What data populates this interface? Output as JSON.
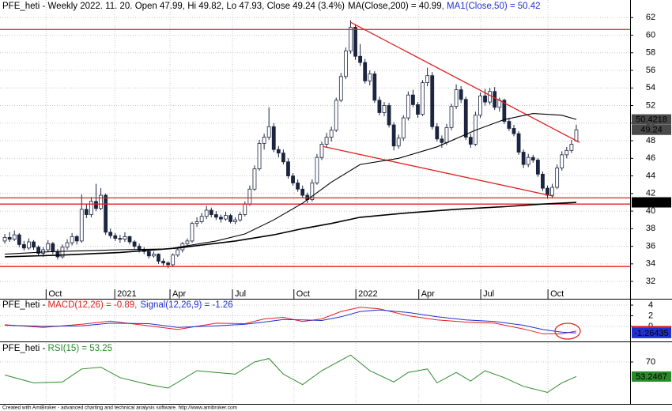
{
  "chart_data": [
    {
      "type": "candlestick",
      "title": "PFE_heti - Weekly 2022. 11. 20. Open 47.99, Hi 49.82, Lo 47.93, Close 49.24 (3.4%)",
      "xlim": [
        -1,
        130.2
      ],
      "xticks": [
        {
          "value": 8.6,
          "label": "Oct"
        },
        {
          "value": 22.9,
          "label": "2021"
        },
        {
          "value": 34.4,
          "label": "Apr"
        },
        {
          "value": 47.4,
          "label": "Jul"
        },
        {
          "value": 60.2,
          "label": "Oct"
        },
        {
          "value": 73.1,
          "label": "2022"
        },
        {
          "value": 86.2,
          "label": "Apr"
        },
        {
          "value": 99.1,
          "label": "Jul"
        },
        {
          "value": 113.1,
          "label": "Oct"
        }
      ],
      "ylim": [
        31.2,
        64
      ],
      "yticks": [
        32,
        34,
        36,
        38,
        40,
        42,
        44,
        46,
        48,
        50,
        52,
        54,
        56,
        58,
        60,
        62
      ],
      "grid": true,
      "up_color": "#ffffff",
      "down_color": "#1c2540",
      "outline_color": "#1c2540",
      "ohlc": [
        [
          36.6,
          37.4,
          36.3,
          37.0
        ],
        [
          37.0,
          37.6,
          36.5,
          36.8
        ],
        [
          36.8,
          37.8,
          36.6,
          37.3
        ],
        [
          37.3,
          37.5,
          35.9,
          36.2
        ],
        [
          36.2,
          36.6,
          35.5,
          35.8
        ],
        [
          35.8,
          36.9,
          35.6,
          36.5
        ],
        [
          36.5,
          36.7,
          35.6,
          35.9
        ],
        [
          35.9,
          36.1,
          34.9,
          35.2
        ],
        [
          35.2,
          35.9,
          34.8,
          35.6
        ],
        [
          35.6,
          36.7,
          35.4,
          36.3
        ],
        [
          36.3,
          36.5,
          35.1,
          35.4
        ],
        [
          35.4,
          35.7,
          34.5,
          34.8
        ],
        [
          34.8,
          36.2,
          34.6,
          35.9
        ],
        [
          35.9,
          36.8,
          35.6,
          36.4
        ],
        [
          36.4,
          37.5,
          36.1,
          37.1
        ],
        [
          37.1,
          37.3,
          36.2,
          36.6
        ],
        [
          36.6,
          41.9,
          36.4,
          40.2
        ],
        [
          40.2,
          40.8,
          39.2,
          39.6
        ],
        [
          39.6,
          41.6,
          39.3,
          41.1
        ],
        [
          41.1,
          43.1,
          40.0,
          40.3
        ],
        [
          40.3,
          42.6,
          40.1,
          41.8
        ],
        [
          41.8,
          42.0,
          37.3,
          37.6
        ],
        [
          37.6,
          38.0,
          36.9,
          37.2
        ],
        [
          37.2,
          37.5,
          36.6,
          36.9
        ],
        [
          36.9,
          37.3,
          36.4,
          36.8
        ],
        [
          36.8,
          37.6,
          36.5,
          37.1
        ],
        [
          37.1,
          37.2,
          36.2,
          36.5
        ],
        [
          36.5,
          36.7,
          35.7,
          36.0
        ],
        [
          36.0,
          36.3,
          35.3,
          35.6
        ],
        [
          35.6,
          35.9,
          35.1,
          35.4
        ],
        [
          35.4,
          35.5,
          34.6,
          34.9
        ],
        [
          34.9,
          35.4,
          34.7,
          35.1
        ],
        [
          35.1,
          35.2,
          34.0,
          34.3
        ],
        [
          34.3,
          34.6,
          33.8,
          34.1
        ],
        [
          34.1,
          34.3,
          33.5,
          33.9
        ],
        [
          33.9,
          35.2,
          33.7,
          35.0
        ],
        [
          35.0,
          35.9,
          34.8,
          35.6
        ],
        [
          35.6,
          36.5,
          35.3,
          36.3
        ],
        [
          36.3,
          36.9,
          36.0,
          36.6
        ],
        [
          36.6,
          38.8,
          36.4,
          38.6
        ],
        [
          38.6,
          39.3,
          38.2,
          38.8
        ],
        [
          38.8,
          39.8,
          38.6,
          39.4
        ],
        [
          39.4,
          40.6,
          39.1,
          40.1
        ],
        [
          40.1,
          40.4,
          39.3,
          39.6
        ],
        [
          39.6,
          40.0,
          39.0,
          39.3
        ],
        [
          39.3,
          39.6,
          38.7,
          39.1
        ],
        [
          39.1,
          39.9,
          38.9,
          39.5
        ],
        [
          39.5,
          39.7,
          38.6,
          38.8
        ],
        [
          38.8,
          39.3,
          38.5,
          39.0
        ],
        [
          39.0,
          39.9,
          38.8,
          39.6
        ],
        [
          39.6,
          41.1,
          39.4,
          40.8
        ],
        [
          40.8,
          42.9,
          40.6,
          42.5
        ],
        [
          42.5,
          45.2,
          42.3,
          44.8
        ],
        [
          44.8,
          48.1,
          44.6,
          47.7
        ],
        [
          47.7,
          48.8,
          47.0,
          48.4
        ],
        [
          48.4,
          51.8,
          48.1,
          49.6
        ],
        [
          49.6,
          50.0,
          46.7,
          47.0
        ],
        [
          47.0,
          47.4,
          46.1,
          46.6
        ],
        [
          46.6,
          47.0,
          45.3,
          45.6
        ],
        [
          45.6,
          46.0,
          43.7,
          44.0
        ],
        [
          44.0,
          44.3,
          42.9,
          43.2
        ],
        [
          43.2,
          43.6,
          42.2,
          42.5
        ],
        [
          42.5,
          42.9,
          41.5,
          41.8
        ],
        [
          41.8,
          42.1,
          40.9,
          41.3
        ],
        [
          41.3,
          43.6,
          41.1,
          43.2
        ],
        [
          43.2,
          46.5,
          43.0,
          46.1
        ],
        [
          46.1,
          47.9,
          45.8,
          47.6
        ],
        [
          47.6,
          48.9,
          47.2,
          48.4
        ],
        [
          48.4,
          49.6,
          47.9,
          49.2
        ],
        [
          49.2,
          52.9,
          49.0,
          52.6
        ],
        [
          52.6,
          55.7,
          52.4,
          55.3
        ],
        [
          55.3,
          58.6,
          55.0,
          58.2
        ],
        [
          58.2,
          61.7,
          57.9,
          60.9
        ],
        [
          60.9,
          61.2,
          57.2,
          57.6
        ],
        [
          57.6,
          59.0,
          56.5,
          56.9
        ],
        [
          56.9,
          57.3,
          54.5,
          54.8
        ],
        [
          54.8,
          56.0,
          54.3,
          55.6
        ],
        [
          55.6,
          55.9,
          52.3,
          52.6
        ],
        [
          52.6,
          53.0,
          50.9,
          51.2
        ],
        [
          51.2,
          52.4,
          50.8,
          52.0
        ],
        [
          52.0,
          52.3,
          49.5,
          49.8
        ],
        [
          49.8,
          50.1,
          46.9,
          47.4
        ],
        [
          47.4,
          48.7,
          47.1,
          48.3
        ],
        [
          48.3,
          50.9,
          48.0,
          50.6
        ],
        [
          50.6,
          53.6,
          50.3,
          53.2
        ],
        [
          53.2,
          53.8,
          51.8,
          52.1
        ],
        [
          52.1,
          52.4,
          50.6,
          51.0
        ],
        [
          51.0,
          54.9,
          50.8,
          54.6
        ],
        [
          54.6,
          56.3,
          54.2,
          55.4
        ],
        [
          55.4,
          55.8,
          49.3,
          49.6
        ],
        [
          49.6,
          50.0,
          47.9,
          48.2
        ],
        [
          48.2,
          48.6,
          47.2,
          47.8
        ],
        [
          47.8,
          49.9,
          47.5,
          49.5
        ],
        [
          49.5,
          52.2,
          49.2,
          51.9
        ],
        [
          51.9,
          54.4,
          51.6,
          53.8
        ],
        [
          53.8,
          54.2,
          52.3,
          52.7
        ],
        [
          52.7,
          53.0,
          48.1,
          48.4
        ],
        [
          48.4,
          48.8,
          47.2,
          47.6
        ],
        [
          47.6,
          51.3,
          47.4,
          50.9
        ],
        [
          50.9,
          53.5,
          50.6,
          53.1
        ],
        [
          53.1,
          53.9,
          52.0,
          52.4
        ],
        [
          52.4,
          54.0,
          52.1,
          53.6
        ],
        [
          53.6,
          54.1,
          51.5,
          51.8
        ],
        [
          51.8,
          52.9,
          51.3,
          52.6
        ],
        [
          52.6,
          52.8,
          49.9,
          50.2
        ],
        [
          50.2,
          50.6,
          49.1,
          49.4
        ],
        [
          49.4,
          49.8,
          48.5,
          48.8
        ],
        [
          48.8,
          49.1,
          46.4,
          46.7
        ],
        [
          46.7,
          47.0,
          44.9,
          45.3
        ],
        [
          45.3,
          46.5,
          45.0,
          46.1
        ],
        [
          46.1,
          46.4,
          45.5,
          45.8
        ],
        [
          45.8,
          46.0,
          43.9,
          44.2
        ],
        [
          44.2,
          44.5,
          42.3,
          42.6
        ],
        [
          42.6,
          42.9,
          41.4,
          41.8
        ],
        [
          41.8,
          43.1,
          41.5,
          42.7
        ],
        [
          42.7,
          45.3,
          42.5,
          44.9
        ],
        [
          44.9,
          46.8,
          44.6,
          46.4
        ],
        [
          46.4,
          47.3,
          46.0,
          46.9
        ],
        [
          46.9,
          48.1,
          46.6,
          47.6
        ],
        [
          47.99,
          49.82,
          47.93,
          49.24
        ]
      ],
      "series": [
        {
          "name": "MA(Close,200) = 40.99",
          "color": "#000000",
          "x": [
            0,
            12,
            24,
            36,
            48,
            56,
            62,
            68,
            74,
            84,
            94,
            104,
            112,
            119
          ],
          "values": [
            34.8,
            35.0,
            35.3,
            35.8,
            36.6,
            37.3,
            38.0,
            38.6,
            39.3,
            39.8,
            40.2,
            40.5,
            40.8,
            40.99
          ]
        },
        {
          "name": "MA1(Close,50) = 50.42",
          "color": "#000000",
          "x": [
            0,
            10,
            24,
            34,
            44,
            50,
            56,
            62,
            68,
            74,
            82,
            90,
            98,
            104,
            110,
            116,
            119
          ],
          "values": [
            35.1,
            35.4,
            35.6,
            35.7,
            36.6,
            37.4,
            39.0,
            40.9,
            43.3,
            45.3,
            46.0,
            47.3,
            49.2,
            50.4,
            51.1,
            50.9,
            50.42
          ]
        }
      ],
      "trend_color": "#e02020",
      "levels": [
        60.65,
        41.5,
        40.8,
        33.7
      ],
      "trendlines": [
        {
          "x": [
            71.9,
            119.7
          ],
          "values": [
            61.5,
            47.8
          ]
        },
        {
          "x": [
            66.2,
            114.2
          ],
          "values": [
            47.35,
            41.7
          ]
        }
      ],
      "last_values": [
        {
          "value": 50.4218,
          "color": "#4a4a4a"
        },
        {
          "value": 49.24,
          "color": "#4a4a4a"
        },
        {
          "value": 40.9942,
          "color": "#000000"
        }
      ]
    },
    {
      "type": "line",
      "title": "PFE_heti - ",
      "xlim": [
        -1,
        130.2
      ],
      "ylim": [
        -2.7,
        4.9
      ],
      "yticks": [
        0,
        2,
        4
      ],
      "grid": true,
      "series": [
        {
          "name": "MACD(12,26) = -0.89,",
          "color": "#e02020",
          "x": [
            0,
            8,
            16,
            22,
            30,
            36,
            44,
            50,
            54,
            58,
            62,
            66,
            70,
            74,
            78,
            84,
            90,
            96,
            102,
            108,
            112,
            116,
            119
          ],
          "values": [
            0.3,
            -0.2,
            0.4,
            1.0,
            0.1,
            -0.6,
            0.6,
            0.5,
            1.4,
            1.7,
            0.9,
            1.4,
            2.8,
            3.6,
            3.3,
            2.0,
            1.2,
            0.8,
            0.6,
            -0.5,
            -1.4,
            -1.4,
            -0.89
          ]
        },
        {
          "name": "Signal(12,26,9) = -1.26",
          "color": "#2030d0",
          "x": [
            0,
            8,
            16,
            22,
            30,
            36,
            44,
            50,
            54,
            58,
            62,
            66,
            70,
            74,
            78,
            84,
            90,
            96,
            102,
            108,
            112,
            116,
            119
          ],
          "values": [
            0.2,
            0.0,
            0.1,
            0.6,
            0.5,
            -0.2,
            0.1,
            0.4,
            0.8,
            1.3,
            1.2,
            1.1,
            1.8,
            2.8,
            3.1,
            2.6,
            1.8,
            1.2,
            0.9,
            0.2,
            -0.6,
            -1.1,
            -1.26
          ]
        }
      ],
      "last_values": [
        {
          "value": -0.8948,
          "color": "#e02020"
        },
        {
          "value": -1.26435,
          "color": "#2030d0"
        }
      ]
    },
    {
      "type": "line",
      "title": "PFE_heti - ",
      "xlim": [
        -1,
        130.2
      ],
      "ylim": [
        21.8,
        91.8
      ],
      "yticks": [
        70
      ],
      "grid": true,
      "series": [
        {
          "name": "RSI(15) = 53.25",
          "color": "#2a8a2a",
          "x": [
            0,
            6,
            12,
            16,
            20,
            24,
            30,
            34,
            40,
            44,
            48,
            52,
            55,
            58,
            62,
            66,
            70,
            72,
            76,
            81,
            84,
            88,
            90,
            94,
            97,
            100,
            104,
            108,
            113,
            116,
            119
          ],
          "values": [
            55,
            46,
            47,
            62,
            64,
            52,
            44,
            40,
            60,
            58,
            56,
            70,
            74,
            56,
            44,
            60,
            72,
            78,
            60,
            47,
            58,
            62,
            46,
            58,
            48,
            60,
            52,
            42,
            35,
            46,
            53.25
          ]
        }
      ],
      "last_values": [
        {
          "value": 53.2467,
          "color": "#2a8a2a"
        }
      ]
    }
  ],
  "footer": "Created with AmiBroker - advanced charting and technical analysis software. http://www.amibroker.com"
}
